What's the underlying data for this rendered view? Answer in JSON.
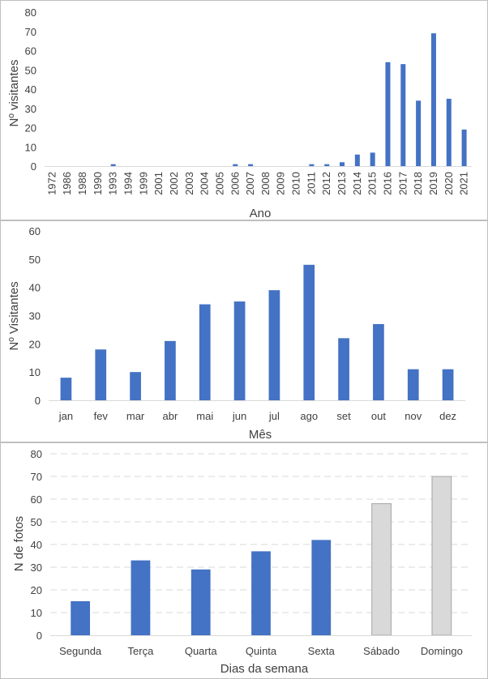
{
  "chart_data": [
    {
      "type": "bar",
      "categories": [
        "1972",
        "1986",
        "1988",
        "1990",
        "1993",
        "1994",
        "1999",
        "2001",
        "2002",
        "2003",
        "2004",
        "2005",
        "2006",
        "2007",
        "2008",
        "2009",
        "2010",
        "2011",
        "2012",
        "2013",
        "2014",
        "2015",
        "2016",
        "2017",
        "2018",
        "2019",
        "2020",
        "2021"
      ],
      "values": [
        0,
        0,
        0,
        0,
        1,
        0,
        0,
        0,
        0,
        0,
        0,
        0,
        1,
        1,
        0,
        0,
        0,
        1,
        1,
        2,
        6,
        7,
        54,
        53,
        34,
        69,
        35,
        19
      ],
      "xlabel": "Ano",
      "ylabel": "Nº visitantes",
      "ylim": [
        0,
        80
      ],
      "yticks": [
        0,
        10,
        20,
        30,
        40,
        50,
        60,
        70,
        80
      ],
      "grid": false,
      "bar_color": "#4472C4"
    },
    {
      "type": "bar",
      "categories": [
        "jan",
        "fev",
        "mar",
        "abr",
        "mai",
        "jun",
        "jul",
        "ago",
        "set",
        "out",
        "nov",
        "dez"
      ],
      "values": [
        8,
        18,
        10,
        21,
        34,
        35,
        39,
        48,
        22,
        27,
        11,
        11
      ],
      "xlabel": "Mês",
      "ylabel": "Nº Visitantes",
      "ylim": [
        0,
        60
      ],
      "yticks": [
        0,
        10,
        20,
        30,
        40,
        50,
        60
      ],
      "grid": false,
      "bar_color": "#4472C4"
    },
    {
      "type": "bar",
      "categories": [
        "Segunda",
        "Terça",
        "Quarta",
        "Quinta",
        "Sexta",
        "Sábado",
        "Domingo"
      ],
      "values": [
        15,
        33,
        29,
        37,
        42,
        58,
        70
      ],
      "xlabel": "Dias da semana",
      "ylabel": "N de fotos",
      "ylim": [
        0,
        80
      ],
      "yticks": [
        0,
        10,
        20,
        30,
        40,
        50,
        60,
        70,
        80
      ],
      "grid": true,
      "bar_colors": [
        "#4472C4",
        "#4472C4",
        "#4472C4",
        "#4472C4",
        "#4472C4",
        "#D9D9D9",
        "#D9D9D9"
      ]
    }
  ]
}
